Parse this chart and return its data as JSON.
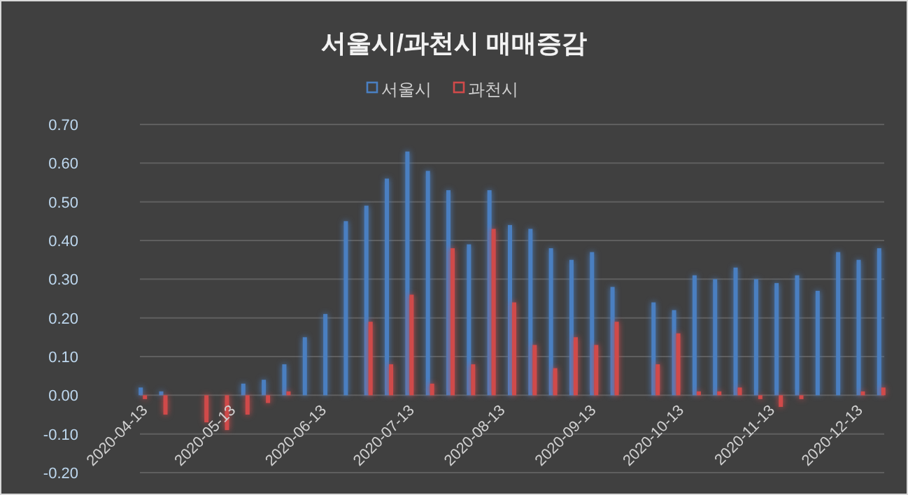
{
  "chart_data": {
    "type": "bar",
    "title": "서울시/과천시 매매증감",
    "legend": "top",
    "grid": "y",
    "x": [
      "2020-04-13",
      "2020-04-20",
      "2020-05-04",
      "2020-05-11",
      "2020-05-18",
      "2020-05-25",
      "2020-06-01",
      "2020-06-08",
      "2020-06-15",
      "2020-06-22",
      "2020-06-29",
      "2020-07-06",
      "2020-07-13",
      "2020-07-20",
      "2020-07-27",
      "2020-08-03",
      "2020-08-10",
      "2020-08-17",
      "2020-08-24",
      "2020-08-31",
      "2020-09-07",
      "2020-09-14",
      "2020-09-21",
      "2020-10-05",
      "2020-10-12",
      "2020-10-19",
      "2020-10-26",
      "2020-11-02",
      "2020-11-09",
      "2020-11-16",
      "2020-11-23",
      "2020-11-30",
      "2020-12-07",
      "2020-12-14",
      "2020-12-21"
    ],
    "series": [
      {
        "name": "서울시",
        "color": "#4a7fc1",
        "values": [
          0.02,
          0.01,
          0.0,
          0.0,
          0.03,
          0.04,
          0.08,
          0.15,
          0.21,
          0.45,
          0.49,
          0.56,
          0.63,
          0.58,
          0.53,
          0.39,
          0.53,
          0.44,
          0.43,
          0.38,
          0.35,
          0.37,
          0.28,
          0.24,
          0.22,
          0.31,
          0.3,
          0.33,
          0.3,
          0.29,
          0.31,
          0.27,
          0.37,
          0.35,
          0.38
        ]
      },
      {
        "name": "과천시",
        "color": "#d04a4a",
        "values": [
          -0.01,
          -0.05,
          -0.07,
          -0.09,
          -0.05,
          -0.02,
          0.01,
          0.0,
          0.0,
          0.0,
          0.19,
          0.08,
          0.26,
          0.03,
          0.38,
          0.08,
          0.43,
          0.24,
          0.13,
          0.07,
          0.15,
          0.13,
          0.19,
          0.08,
          0.16,
          0.01,
          0.01,
          0.02,
          -0.01,
          -0.03,
          -0.01,
          0.0,
          0.0,
          0.01,
          0.02
        ]
      }
    ],
    "xlim": [
      "2020-04-12",
      "2020-12-22"
    ],
    "xticks": [
      "2020-04-13",
      "2020-05-13",
      "2020-06-13",
      "2020-07-13",
      "2020-08-13",
      "2020-09-13",
      "2020-10-13",
      "2020-11-13",
      "2020-12-13"
    ],
    "ylim": [
      -0.2,
      0.7
    ],
    "yticks": [
      {
        "value": -0.2,
        "label": "-0.20"
      },
      {
        "value": -0.1,
        "label": "-0.10"
      },
      {
        "value": 0,
        "label": "0.00"
      },
      {
        "value": 0.1,
        "label": "0.10"
      },
      {
        "value": 0.2,
        "label": "0.20"
      },
      {
        "value": 0.3,
        "label": "0.30"
      },
      {
        "value": 0.4,
        "label": "0.40"
      },
      {
        "value": 0.5,
        "label": "0.50"
      },
      {
        "value": 0.6,
        "label": "0.60"
      },
      {
        "value": 0.7,
        "label": "0.70"
      }
    ]
  }
}
